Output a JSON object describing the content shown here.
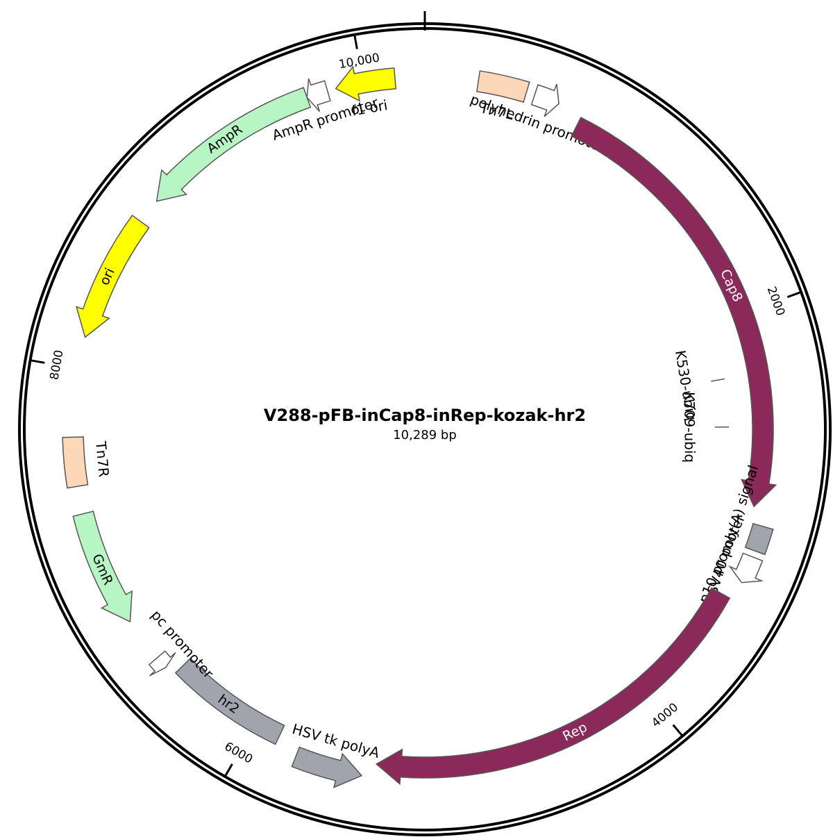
{
  "plasmid": {
    "name": "V288-pFB-inCap8-inRep-kozak-hr2",
    "size_label": "10,289 bp",
    "length_bp": 10289
  },
  "ticks": [
    {
      "bp": 2000,
      "label": "2000"
    },
    {
      "bp": 4000,
      "label": "4000"
    },
    {
      "bp": 6000,
      "label": "6000"
    },
    {
      "bp": 8000,
      "label": "8000"
    },
    {
      "bp": 10000,
      "label": "10,000"
    }
  ],
  "features": [
    {
      "id": "tn7l",
      "name": "Tn7L",
      "type": "box",
      "start": 250,
      "end": 480,
      "ring": 0,
      "color": "#fcd7b8"
    },
    {
      "id": "polyhedrin-promoter",
      "name": "polyhedrin promoter",
      "type": "arrow",
      "dir": 1,
      "start": 520,
      "end": 640,
      "ring": 0,
      "color": "#ffffff"
    },
    {
      "id": "cap8",
      "name": "Cap8",
      "type": "arrow",
      "dir": 1,
      "start": 760,
      "end": 2950,
      "ring": 1,
      "color": "#8b2a5a"
    },
    {
      "id": "sv40-polya",
      "name": "SV40 poly(A) signal",
      "type": "box",
      "start": 3030,
      "end": 3150,
      "ring": 0,
      "color": "#a0a5ad"
    },
    {
      "id": "p10-promoter",
      "name": "p10 promoter",
      "type": "arrow",
      "dir": 1,
      "start": 3180,
      "end": 3310,
      "ring": 0,
      "color": "#ffffff"
    },
    {
      "id": "rep",
      "name": "Rep",
      "type": "arrow",
      "dir": 1,
      "start": 3400,
      "end": 5380,
      "ring": 1,
      "color": "#8b2a5a"
    },
    {
      "id": "hsv-tk-polya",
      "name": "HSV tk polyA",
      "type": "arrow",
      "dir": -1,
      "start": 5440,
      "end": 5760,
      "ring": 0,
      "color": "#a0a5ad"
    },
    {
      "id": "hr2",
      "name": "hr2",
      "type": "box",
      "start": 5870,
      "end": 6450,
      "ring": 1,
      "color": "#a0a5ad"
    },
    {
      "id": "pc-promoter",
      "name": "pc promoter",
      "type": "arrow",
      "dir": -1,
      "start": 6500,
      "end": 6560,
      "ring": 0,
      "color": "#ffffff"
    },
    {
      "id": "gmr",
      "name": "GmR",
      "type": "arrow",
      "dir": -1,
      "start": 6770,
      "end": 7320,
      "ring": 0,
      "color": "#b8f5c4"
    },
    {
      "id": "tn7r",
      "name": "Tn7R",
      "type": "box",
      "start": 7450,
      "end": 7680,
      "ring": 0,
      "color": "#fcd7b8"
    },
    {
      "id": "ori",
      "name": "ori",
      "type": "arrow",
      "dir": -1,
      "start": 8150,
      "end": 8750,
      "ring": 0,
      "color": "#ffff00"
    },
    {
      "id": "ampr",
      "name": "AmpR",
      "type": "arrow",
      "dir": -1,
      "start": 8870,
      "end": 9730,
      "ring": 0,
      "color": "#b8f5c4"
    },
    {
      "id": "ampr-promoter",
      "name": "AmpR promoter",
      "type": "arrow",
      "dir": -1,
      "start": 9730,
      "end": 9830,
      "ring": 0,
      "color": "#ffffff"
    },
    {
      "id": "f1-ori",
      "name": "f1 ori",
      "type": "arrow",
      "dir": -1,
      "start": 9870,
      "end": 10150,
      "ring": 0,
      "color": "#ffff00"
    }
  ],
  "sites": [
    {
      "id": "k530-ubiq",
      "name": "K530-ubiq",
      "bp": 2300
    },
    {
      "id": "k709-ubiq",
      "name": "K709-ubiq",
      "bp": 2560
    }
  ]
}
